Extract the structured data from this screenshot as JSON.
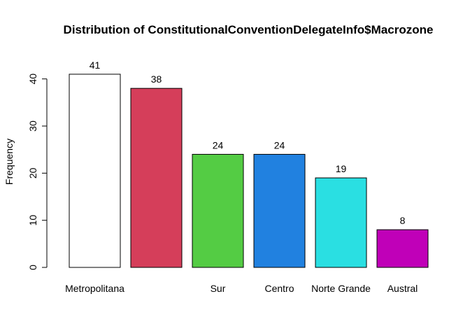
{
  "chart_data": {
    "type": "bar",
    "title": "Distribution of ConstitutionalConventionDelegateInfo$Macrozone",
    "xlabel": "",
    "ylabel": "Frequency",
    "ylim": [
      0,
      41
    ],
    "yticks": [
      0,
      10,
      20,
      30,
      40
    ],
    "categories": [
      "Metropolitana",
      "",
      "Sur",
      "Centro",
      "Norte Grande",
      "Austral"
    ],
    "values": [
      41,
      38,
      24,
      24,
      19,
      8
    ],
    "data_labels": [
      "41",
      "38",
      "24",
      "24",
      "19",
      "8"
    ],
    "colors": [
      "#ffffff",
      "#d53e5a",
      "#54cc44",
      "#2181e0",
      "#2adfe2",
      "#c000b8"
    ],
    "grid": false,
    "legend": "none"
  }
}
